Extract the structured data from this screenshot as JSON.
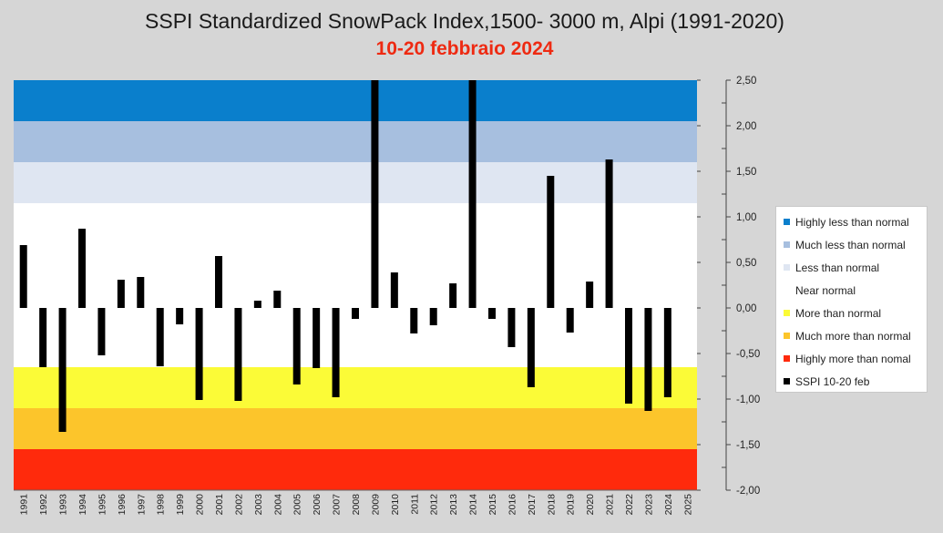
{
  "title": "SSPI Standardized SnowPack Index,1500- 3000 m, Alpi (1991-2020)",
  "subtitle": "10-20 febbraio 2024",
  "colors": {
    "background": "#d6d6d6",
    "subtitle": "#ee2a12",
    "bars": "#000000"
  },
  "chart_data": {
    "type": "bar",
    "title": "SSPI Standardized SnowPack Index,1500- 3000 m, Alpi (1991-2020)",
    "subtitle": "10-20 febbraio 2024",
    "xlabel": "",
    "ylabel": "",
    "ylim": [
      -2.0,
      2.5
    ],
    "y_axis_position": "right",
    "yticks": [
      "2,50",
      "2,00",
      "1,50",
      "1,00",
      "0,50",
      "0,00",
      "-0,50",
      "-1,00",
      "-1,50",
      "-2,00"
    ],
    "ytick_values": [
      2.5,
      2.0,
      1.5,
      1.0,
      0.5,
      0.0,
      -0.5,
      -1.0,
      -1.5,
      -2.0
    ],
    "categories": [
      "1991",
      "1992",
      "1993",
      "1994",
      "1995",
      "1996",
      "1997",
      "1998",
      "1999",
      "2000",
      "2001",
      "2002",
      "2003",
      "2004",
      "2005",
      "2006",
      "2007",
      "2008",
      "2009",
      "2010",
      "2011",
      "2012",
      "2013",
      "2014",
      "2015",
      "2016",
      "2017",
      "2018",
      "2019",
      "2020",
      "2021",
      "2022",
      "2023",
      "2024",
      "2025"
    ],
    "series": [
      {
        "name": "SSPI 10-20 feb",
        "color": "#000000",
        "values": [
          0.69,
          -0.65,
          -1.36,
          0.87,
          -0.52,
          0.31,
          0.34,
          -0.64,
          -0.18,
          -1.01,
          0.57,
          -1.02,
          0.08,
          0.19,
          -0.84,
          -0.66,
          -0.98,
          -0.12,
          2.5,
          0.39,
          -0.28,
          -0.19,
          0.27,
          2.5,
          -0.12,
          -0.43,
          -0.87,
          1.45,
          -0.27,
          0.29,
          1.63,
          -1.05,
          -1.13,
          -0.98,
          null
        ]
      }
    ],
    "bands": [
      {
        "label": "Highly less than normal",
        "from": 2.05,
        "to": 2.5,
        "color": "#0a7fcc"
      },
      {
        "label": "Much less than normal",
        "from": 1.6,
        "to": 2.05,
        "color": "#a7bfdf"
      },
      {
        "label": "Less than normal",
        "from": 1.15,
        "to": 1.6,
        "color": "#dfe6f2"
      },
      {
        "label": "Near normal",
        "from": -0.65,
        "to": 1.15,
        "color": "#ffffff"
      },
      {
        "label": "More than normal",
        "from": -1.1,
        "to": -0.65,
        "color": "#fbfb37"
      },
      {
        "label": "Much more than normal",
        "from": -1.55,
        "to": -1.1,
        "color": "#fcc52b"
      },
      {
        "label": "Highly more than nomal",
        "from": -2.0,
        "to": -1.55,
        "color": "#ff2a0c"
      }
    ],
    "legend": [
      {
        "label": "Highly less than normal",
        "color": "#0a7fcc"
      },
      {
        "label": "Much less than normal",
        "color": "#a7bfdf"
      },
      {
        "label": "Less than normal",
        "color": "#dfe6f2"
      },
      {
        "label": "Near normal",
        "color": "#ffffff"
      },
      {
        "label": "More than normal",
        "color": "#fbfb37"
      },
      {
        "label": "Much more than normal",
        "color": "#fcc52b"
      },
      {
        "label": "Highly more than nomal",
        "color": "#ff2a0c"
      },
      {
        "label": "SSPI 10-20 feb",
        "color": "#000000"
      }
    ],
    "legend_position": "right",
    "grid": false
  }
}
